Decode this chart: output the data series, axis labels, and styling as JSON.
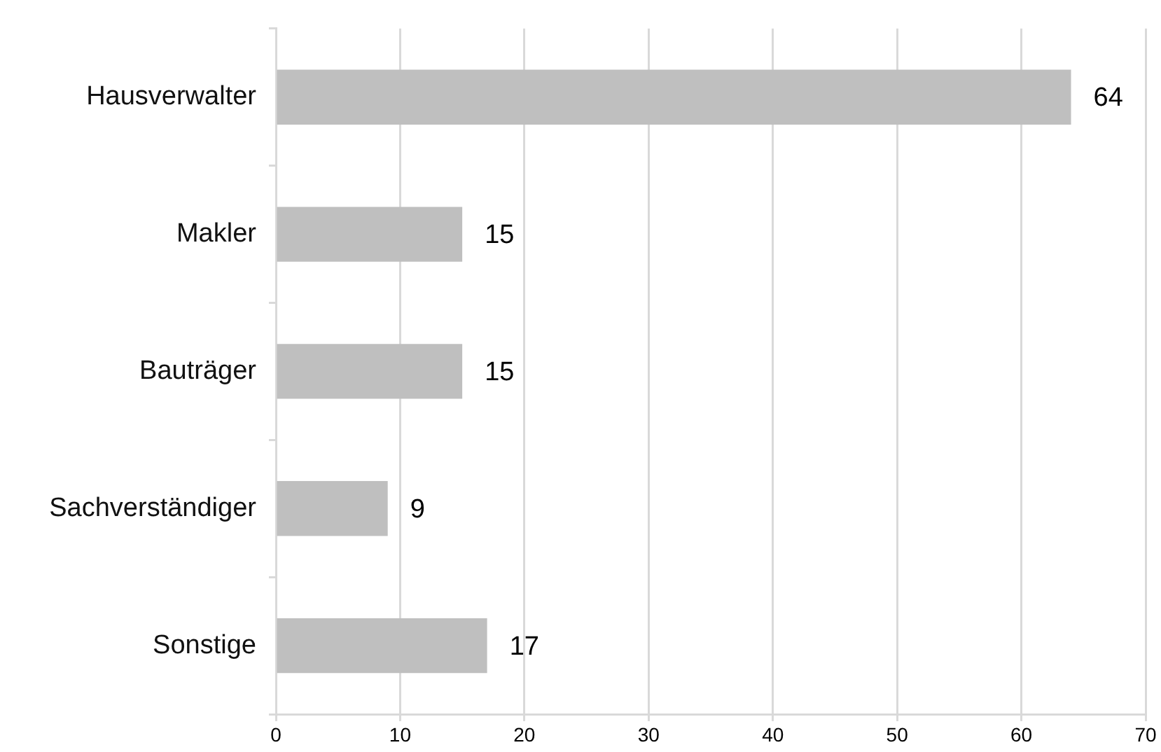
{
  "chart_data": {
    "type": "bar",
    "orientation": "horizontal",
    "categories": [
      "Hausverwalter",
      "Makler",
      "Bauträger",
      "Sachverständiger",
      "Sonstige"
    ],
    "values": [
      64,
      15,
      15,
      9,
      17
    ],
    "color": "#bfbfbf",
    "xlim": [
      0,
      70
    ],
    "xticks": [
      0,
      10,
      20,
      30,
      40,
      50,
      60,
      70
    ],
    "grid": "x",
    "data_labels": true,
    "legend": false
  }
}
